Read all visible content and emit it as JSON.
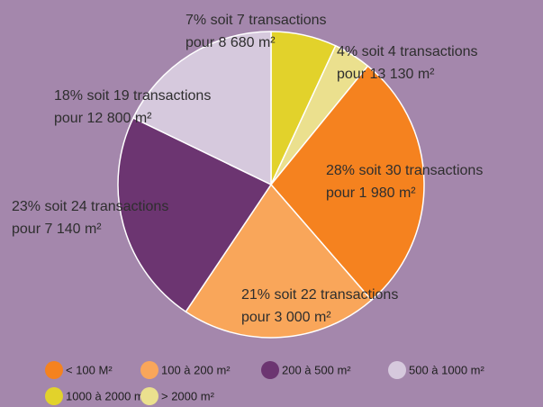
{
  "chart_data": {
    "type": "pie",
    "categories": [
      "< 100 M²",
      "100 à 200 m²",
      "200  à 500 m²",
      "500 à 1000 m²",
      "1000 à 2000 m²",
      "> 2000 m²"
    ],
    "values": [
      28,
      21,
      23,
      18,
      7,
      4
    ],
    "value_labels": [
      [
        "28% soit 30 transactions",
        "pour 1 980 m²"
      ],
      [
        "21% soit 22 transactions",
        "pour 3 000 m²"
      ],
      [
        "23% soit 24 transactions",
        "pour 7 140 m²"
      ],
      [
        "18% soit 19 transactions",
        "pour 12 800 m²"
      ],
      [
        "7% soit 7 transactions",
        "pour 8 680 m²"
      ],
      [
        "4% soit 4 transactions",
        "pour 13 130 m²"
      ]
    ],
    "colors": [
      "#f5821f",
      "#f9a65a",
      "#6c3571",
      "#d6c9dd",
      "#e2d22b",
      "#ebe08e"
    ],
    "legend": "bottom"
  }
}
